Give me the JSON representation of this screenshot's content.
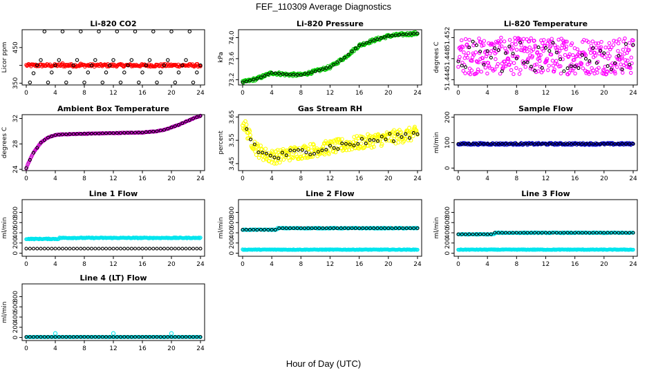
{
  "figure": {
    "title": "FEF_110309  Average Diagnostics",
    "xlabel": "Hour of Day (UTC)"
  },
  "colors": {
    "co2": "#ff0000",
    "pressure": "#00cc00",
    "temperature": "#ff00ff",
    "ambient": "#cc00cc",
    "rh": "#ffff00",
    "sample_flow": "#0000cc",
    "line_flow": "#00e5ee",
    "average": "#000000"
  },
  "chart_data": [
    {
      "id": "co2",
      "type": "scatter",
      "title": "Li-820 CO2",
      "ylabel": "Licor ppm",
      "xlim": [
        0,
        24
      ],
      "ylim": [
        345,
        500
      ],
      "yticks": [
        350,
        400,
        450
      ],
      "ytick_labels": [
        "350",
        "",
        "450"
      ],
      "xticks": [
        0,
        4,
        8,
        12,
        16,
        20,
        24
      ],
      "series": [
        {
          "name": "raw",
          "color": "#ff0000",
          "pattern": "band",
          "center": 400,
          "spread": 4,
          "extra": {
            "x": [
              5,
              6,
              7.5
            ],
            "y": [
              405,
              402,
              404
            ]
          }
        },
        {
          "name": "hourly",
          "color": "#000000",
          "pattern": "points",
          "x": [
            0.5,
            1.0,
            1.5,
            2.0,
            2.5,
            3.0,
            3.5,
            4.0,
            4.5,
            5.0,
            5.5,
            6.0,
            6.5,
            7.0,
            7.5,
            8.0,
            8.5,
            9.0,
            9.5,
            10.0,
            10.5,
            11.0,
            11.5,
            12.0,
            12.5,
            13.0,
            13.5,
            14.0,
            14.5,
            15.0,
            15.5,
            16.0,
            16.5,
            17.0,
            17.5,
            18.0,
            18.5,
            19.0,
            19.5,
            20.0,
            20.5,
            21.0,
            21.5,
            22.0,
            22.5,
            23.0,
            23.5,
            24.0
          ],
          "y": [
            352,
            378,
            400,
            415,
            495,
            352,
            380,
            400,
            415,
            495,
            352,
            380,
            400,
            415,
            495,
            352,
            380,
            400,
            415,
            495,
            352,
            380,
            400,
            415,
            495,
            352,
            380,
            400,
            415,
            495,
            352,
            380,
            400,
            415,
            495,
            352,
            380,
            400,
            415,
            495,
            352,
            380,
            400,
            415,
            495,
            352,
            380,
            400
          ]
        }
      ]
    },
    {
      "id": "pressure",
      "type": "scatter",
      "title": "Li-820 Pressure",
      "ylabel": "kPa",
      "xlim": [
        0,
        24
      ],
      "ylim": [
        73.1,
        74.15
      ],
      "yticks": [
        73.2,
        73.6,
        74.0
      ],
      "ytick_labels": [
        "73.2",
        "73.6",
        "74.0"
      ],
      "xticks": [
        0,
        4,
        8,
        12,
        16,
        20,
        24
      ],
      "series": [
        {
          "name": "raw",
          "color": "#00cc00",
          "pattern": "curve",
          "x": [
            0,
            2,
            4,
            6,
            8,
            10,
            12,
            14,
            16,
            18,
            20,
            22,
            24
          ],
          "y": [
            73.15,
            73.22,
            73.33,
            73.3,
            73.29,
            73.36,
            73.44,
            73.62,
            73.85,
            73.95,
            74.03,
            74.06,
            74.08
          ],
          "spread": 0.03
        },
        {
          "name": "hourly",
          "color": "#000000",
          "pattern": "curve-points",
          "x": [
            0,
            2,
            4,
            6,
            8,
            10,
            12,
            14,
            16,
            18,
            20,
            22,
            24
          ],
          "y": [
            73.15,
            73.22,
            73.33,
            73.3,
            73.29,
            73.36,
            73.44,
            73.62,
            73.85,
            73.95,
            74.03,
            74.06,
            74.08
          ]
        }
      ]
    },
    {
      "id": "temperature",
      "type": "scatter",
      "title": "Li-820 Temperature",
      "ylabel": "degrees C",
      "xlim": [
        0,
        24
      ],
      "ylim": [
        51.443,
        51.4535
      ],
      "yticks": [
        51.444,
        51.448,
        51.452
      ],
      "ytick_labels": [
        "51.444",
        "51.448",
        "51.452"
      ],
      "xticks": [
        0,
        4,
        8,
        12,
        16,
        20,
        24
      ],
      "series": [
        {
          "name": "raw",
          "color": "#ff00ff",
          "pattern": "noise",
          "center": 51.4485,
          "spread": 0.0035
        },
        {
          "name": "hourly",
          "color": "#000000",
          "pattern": "noise-sparse",
          "center": 51.4485,
          "spread": 0.003
        }
      ]
    },
    {
      "id": "ambient",
      "type": "scatter",
      "title": "Ambient Box Temperature",
      "ylabel": "degrees C",
      "xlim": [
        0,
        24
      ],
      "ylim": [
        23.8,
        32.6
      ],
      "yticks": [
        24,
        28,
        32
      ],
      "ytick_labels": [
        "24",
        "28",
        "32"
      ],
      "xticks": [
        0,
        4,
        8,
        12,
        16,
        20,
        24
      ],
      "series": [
        {
          "name": "raw",
          "color": "#cc00cc",
          "pattern": "curve",
          "x": [
            0,
            0.5,
            1,
            2,
            3,
            4,
            5,
            8,
            12,
            16,
            18,
            19,
            20,
            21,
            22,
            23,
            24
          ],
          "y": [
            24.2,
            25.5,
            26.6,
            28.2,
            29.0,
            29.4,
            29.5,
            29.6,
            29.7,
            29.8,
            30.0,
            30.2,
            30.6,
            31.0,
            31.5,
            32.0,
            32.4
          ],
          "spread": 0.05
        },
        {
          "name": "hourly",
          "color": "#000000",
          "pattern": "curve-points",
          "x": [
            0,
            0.5,
            1,
            2,
            3,
            4,
            5,
            8,
            12,
            16,
            18,
            19,
            20,
            21,
            22,
            23,
            24
          ],
          "y": [
            24.2,
            25.5,
            26.6,
            28.2,
            29.0,
            29.4,
            29.5,
            29.6,
            29.7,
            29.8,
            30.0,
            30.2,
            30.6,
            31.0,
            31.5,
            32.0,
            32.4
          ]
        }
      ]
    },
    {
      "id": "rh",
      "type": "scatter",
      "title": "Gas Stream RH",
      "ylabel": "percent",
      "xlim": [
        0,
        24
      ],
      "ylim": [
        3.42,
        3.66
      ],
      "yticks": [
        3.45,
        3.55,
        3.65
      ],
      "ytick_labels": [
        "3.45",
        "3.55",
        "3.65"
      ],
      "xticks": [
        0,
        4,
        8,
        12,
        16,
        20,
        24
      ],
      "series": [
        {
          "name": "raw",
          "color": "#ffff00",
          "pattern": "curve-noisy",
          "x": [
            0,
            0.5,
            1,
            2,
            3,
            4,
            5,
            6,
            8,
            10,
            12,
            14,
            16,
            18,
            20,
            22,
            24
          ],
          "y": [
            3.63,
            3.6,
            3.56,
            3.51,
            3.49,
            3.48,
            3.48,
            3.49,
            3.5,
            3.51,
            3.52,
            3.53,
            3.54,
            3.55,
            3.56,
            3.57,
            3.58
          ],
          "spread": 0.03
        },
        {
          "name": "hourly",
          "color": "#000000",
          "pattern": "curve-points-noisy",
          "x": [
            0,
            0.5,
            1,
            2,
            3,
            4,
            5,
            6,
            8,
            10,
            12,
            14,
            16,
            18,
            20,
            22,
            24
          ],
          "y": [
            3.63,
            3.6,
            3.56,
            3.51,
            3.49,
            3.48,
            3.48,
            3.49,
            3.5,
            3.51,
            3.52,
            3.53,
            3.54,
            3.55,
            3.56,
            3.57,
            3.58
          ]
        }
      ]
    },
    {
      "id": "sample_flow",
      "type": "scatter",
      "title": "Sample Flow",
      "ylabel": "ml/min",
      "xlim": [
        0,
        24
      ],
      "ylim": [
        -10,
        210
      ],
      "yticks": [
        0,
        100,
        200
      ],
      "ytick_labels": [
        "0",
        "100",
        "200"
      ],
      "xticks": [
        0,
        4,
        8,
        12,
        16,
        20,
        24
      ],
      "series": [
        {
          "name": "raw",
          "color": "#0000cc",
          "pattern": "band",
          "center": 95,
          "spread": 4
        },
        {
          "name": "hourly",
          "color": "#000000",
          "pattern": "flat-points",
          "center": 95
        }
      ]
    },
    {
      "id": "line1",
      "type": "scatter",
      "title": "Line 1 Flow",
      "ylabel": "ml/min",
      "xlim": [
        0,
        24
      ],
      "ylim": [
        -60,
        1050
      ],
      "yticks": [
        0,
        200,
        400,
        600,
        800
      ],
      "ytick_labels": [
        "0",
        "200",
        "400",
        "600",
        "800"
      ],
      "xticks": [
        0,
        4,
        8,
        12,
        16,
        20,
        24
      ],
      "series": [
        {
          "name": "line_high",
          "color": "#00e5ee",
          "pattern": "band",
          "center": 280,
          "spread": 8,
          "steps": [
            {
              "from": 4.5,
              "center": 300
            }
          ]
        },
        {
          "name": "line_low",
          "color": "#000000",
          "pattern": "flat-points",
          "center": 90
        }
      ]
    },
    {
      "id": "line2",
      "type": "scatter",
      "title": "Line 2 Flow",
      "ylabel": "ml/min",
      "xlim": [
        0,
        24
      ],
      "ylim": [
        -60,
        1050
      ],
      "yticks": [
        0,
        200,
        400,
        600,
        800
      ],
      "ytick_labels": [
        "0",
        "200",
        "400",
        "600",
        "800"
      ],
      "xticks": [
        0,
        4,
        8,
        12,
        16,
        20,
        24
      ],
      "series": [
        {
          "name": "line_low",
          "color": "#00e5ee",
          "pattern": "band",
          "center": 70,
          "spread": 6
        },
        {
          "name": "line_high",
          "color": "#00e5ee",
          "pattern": "band",
          "center": 460,
          "spread": 8,
          "steps": [
            {
              "from": 4.8,
              "center": 490
            }
          ]
        },
        {
          "name": "hourly",
          "color": "#000000",
          "pattern": "flat-points",
          "center": 460,
          "steps": [
            {
              "from": 4.8,
              "center": 490
            }
          ]
        }
      ]
    },
    {
      "id": "line3",
      "type": "scatter",
      "title": "Line 3 Flow",
      "ylabel": "ml/min",
      "xlim": [
        0,
        24
      ],
      "ylim": [
        -60,
        1050
      ],
      "yticks": [
        0,
        200,
        400,
        600,
        800
      ],
      "ytick_labels": [
        "0",
        "200",
        "400",
        "600",
        "800"
      ],
      "xticks": [
        0,
        4,
        8,
        12,
        16,
        20,
        24
      ],
      "series": [
        {
          "name": "line_low",
          "color": "#00e5ee",
          "pattern": "band",
          "center": 70,
          "spread": 6
        },
        {
          "name": "line_high",
          "color": "#00e5ee",
          "pattern": "band",
          "center": 370,
          "spread": 8,
          "steps": [
            {
              "from": 5,
              "center": 400
            }
          ]
        },
        {
          "name": "hourly",
          "color": "#000000",
          "pattern": "flat-points",
          "center": 370,
          "steps": [
            {
              "from": 5,
              "center": 400
            }
          ]
        }
      ]
    },
    {
      "id": "line4",
      "type": "scatter",
      "title": "Line 4 (LT) Flow",
      "ylabel": "ml/min",
      "xlim": [
        0,
        24
      ],
      "ylim": [
        -60,
        1050
      ],
      "yticks": [
        0,
        200,
        400,
        600,
        800
      ],
      "ytick_labels": [
        "0",
        "200",
        "400",
        "600",
        "800"
      ],
      "xticks": [
        0,
        4,
        8,
        12,
        16,
        20,
        24
      ],
      "series": [
        {
          "name": "line_low",
          "color": "#00e5ee",
          "pattern": "band",
          "center": 10,
          "spread": 3,
          "extra": {
            "x": [
              4,
              12,
              20
            ],
            "y": [
              80,
              80,
              80
            ]
          }
        },
        {
          "name": "hourly",
          "color": "#000000",
          "pattern": "flat-points",
          "center": 10
        }
      ]
    }
  ]
}
